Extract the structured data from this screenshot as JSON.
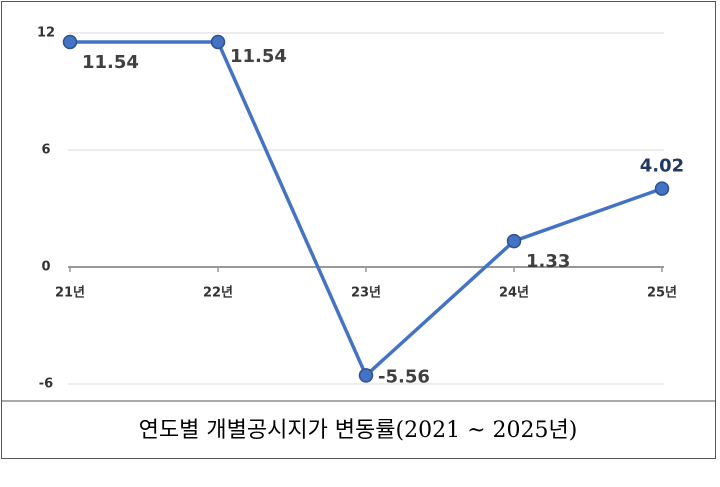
{
  "chart_data": {
    "type": "line",
    "title": "연도별 개별공시지가 변동률(2021 ~ 2025년)",
    "categories": [
      "21년",
      "22년",
      "23년",
      "24년",
      "25년"
    ],
    "series": [
      {
        "name": "변동률",
        "color": "#4472c4",
        "values": [
          11.54,
          11.54,
          -5.56,
          1.33,
          4.02
        ]
      }
    ],
    "ylim": [
      -6,
      12
    ],
    "yticks": [
      -6,
      0,
      6,
      12
    ],
    "grid": true
  }
}
